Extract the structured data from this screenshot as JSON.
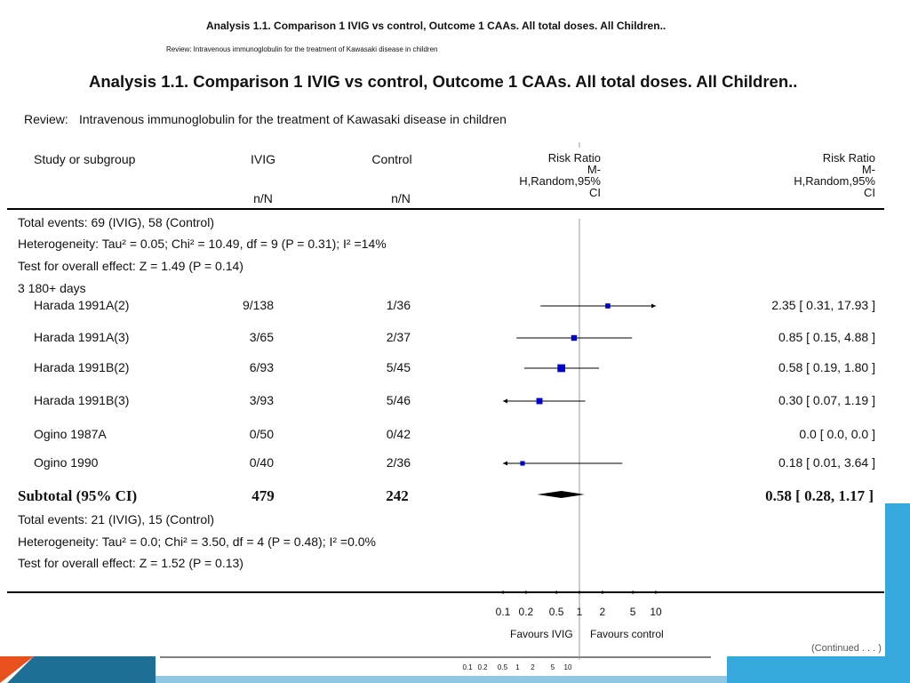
{
  "top": {
    "title": "Analysis 1.1.   Comparison 1 IVIG vs control, Outcome 1 CAAs. All total doses. All Children..",
    "review": "Review:   Intravenous immunoglobulin for the treatment of Kawasaki disease in children"
  },
  "main": {
    "title": "Analysis 1.1.   Comparison 1 IVIG vs control, Outcome 1 CAAs. All total doses. All Children..",
    "review_label": "Review:",
    "review_text": "Intravenous immunoglobulin for the treatment of Kawasaki disease in children"
  },
  "columns": {
    "study": "Study or subgroup",
    "ivig": "IVIG",
    "control": "Control",
    "nn": "n/N",
    "rr": [
      "Risk Ratio",
      "M-",
      "H,Random,95%",
      "CI"
    ]
  },
  "overall": {
    "total_events": "Total events: 69 (IVIG), 58 (Control)",
    "heterogeneity": "Heterogeneity: Tau² = 0.05; Chi² = 10.49, df = 9 (P = 0.31); I² =14%",
    "test": "Test for overall effect: Z = 1.49 (P = 0.14)"
  },
  "subgroup_title": "3 180+ days",
  "subtotal": {
    "label": "Subtotal (95% CI)",
    "ivig": "479",
    "control": "242",
    "ci": "0.58 [ 0.28, 1.17 ]",
    "total_events": "Total events: 21 (IVIG), 15 (Control)",
    "heterogeneity": "Heterogeneity: Tau² = 0.0; Chi² = 3.50, df = 4 (P = 0.48); I² =0.0%",
    "test": "Test for overall effect: Z = 1.52 (P = 0.13)"
  },
  "axis_labels": {
    "favours_left": "Favours IVIG",
    "favours_right": "Favours control",
    "tail": "(Continued . . . )"
  },
  "chart_data": {
    "type": "forest",
    "scale": "log",
    "xlim": [
      0.1,
      10
    ],
    "ticks": [
      0.1,
      0.2,
      0.5,
      1,
      2,
      5,
      10
    ],
    "tick_labels": [
      "0.1",
      "0.2",
      "0.5",
      "1",
      "2",
      "5",
      "10"
    ],
    "rows": [
      {
        "study": "Harada 1991A(2)",
        "ivig": "9/138",
        "control": "1/36",
        "rr": 2.35,
        "lo": 0.31,
        "hi": 17.93,
        "ci_text": "2.35 [ 0.31, 17.93 ]",
        "weight": 1
      },
      {
        "study": "Harada 1991A(3)",
        "ivig": "3/65",
        "control": "2/37",
        "rr": 0.85,
        "lo": 0.15,
        "hi": 4.88,
        "ci_text": "0.85 [ 0.15, 4.88 ]",
        "weight": 1.3
      },
      {
        "study": "Harada 1991B(2)",
        "ivig": "6/93",
        "control": "5/45",
        "rr": 0.58,
        "lo": 0.19,
        "hi": 1.8,
        "ci_text": "0.58 [ 0.19, 1.80 ]",
        "weight": 2.2
      },
      {
        "study": "Harada 1991B(3)",
        "ivig": "3/93",
        "control": "5/46",
        "rr": 0.3,
        "lo": 0.07,
        "hi": 1.19,
        "ci_text": "0.30 [ 0.07, 1.19 ]",
        "weight": 1.5
      },
      {
        "study": "Ogino 1987A",
        "ivig": "0/50",
        "control": "0/42",
        "rr": null,
        "lo": null,
        "hi": null,
        "ci_text": "0.0 [ 0.0, 0.0 ]",
        "weight": 0
      },
      {
        "study": "Ogino 1990",
        "ivig": "0/40",
        "control": "2/36",
        "rr": 0.18,
        "lo": 0.01,
        "hi": 3.64,
        "ci_text": "0.18 [ 0.01, 3.64 ]",
        "weight": 0.8
      }
    ],
    "subtotal": {
      "rr": 0.58,
      "lo": 0.28,
      "hi": 1.17
    },
    "colors": {
      "marker": "#0000cc",
      "line": "#000000",
      "diamond": "#000000"
    }
  },
  "theme": {
    "accent_orange": "#e8501e",
    "accent_blue": "#35a9dc",
    "accent_navy": "#1d6f96"
  }
}
